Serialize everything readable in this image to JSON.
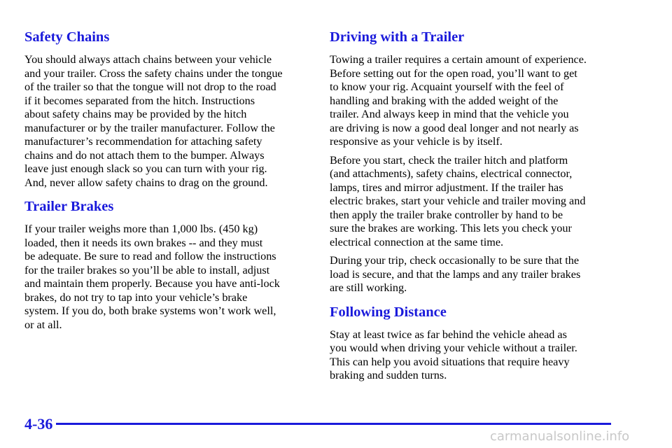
{
  "columns": [
    {
      "sections": [
        {
          "heading": "Safety Chains",
          "paragraphs": [
            [
              "You should always attach chains between your vehicle",
              "and your trailer. Cross the safety chains under the tongue",
              "of the trailer so that the tongue will not drop to the road",
              "if it becomes separated from the hitch. Instructions",
              "about safety chains may be provided by the hitch",
              "manufacturer or by the trailer manufacturer. Follow the",
              "manufacturer’s recommendation for attaching safety",
              "chains and do not attach them to the bumper. Always",
              "leave just enough slack so you can turn with your rig.",
              "And, never allow safety chains to drag on the ground."
            ]
          ]
        },
        {
          "heading": "Trailer Brakes",
          "paragraphs": [
            [
              "If your trailer weighs more than 1,000 lbs. (450 kg)",
              "loaded, then it needs its own brakes -- and they must",
              "be adequate. Be sure to read and follow the instructions",
              "for the trailer brakes so you’ll be able to install, adjust",
              "and maintain them properly. Because you have anti-lock",
              "brakes, do not try to tap into your vehicle’s brake",
              "system. If you do, both brake systems won’t work well,",
              "or at all."
            ]
          ]
        }
      ]
    },
    {
      "sections": [
        {
          "heading": "Driving with a Trailer",
          "paragraphs": [
            [
              "Towing a trailer requires a certain amount of experience.",
              "Before setting out for the open road, you’ll want to get",
              "to know your rig. Acquaint yourself with the feel of",
              "handling and braking with the added weight of the",
              "trailer. And always keep in mind that the vehicle you",
              "are driving is now a good deal longer and not nearly as",
              "responsive as your vehicle is by itself."
            ],
            [
              "Before you start, check the trailer hitch and platform",
              "(and attachments), safety chains, electrical connector,",
              "lamps, tires and mirror adjustment. If the trailer has",
              "electric brakes, start your vehicle and trailer moving and",
              "then apply the trailer brake controller by hand to be",
              "sure the brakes are working. This lets you check your",
              "electrical connection at the same time."
            ],
            [
              "During your trip, check occasionally to be sure that the",
              "load is secure, and that the lamps and any trailer brakes",
              "are still working."
            ]
          ]
        },
        {
          "heading": "Following Distance",
          "paragraphs": [
            [
              "Stay at least twice as far behind the vehicle ahead as",
              "you would when driving your vehicle without a trailer.",
              "This can help you avoid situations that require heavy",
              "braking and sudden turns."
            ]
          ]
        }
      ]
    }
  ],
  "page_number": "4-36",
  "watermark": "carmanualsonline.info"
}
